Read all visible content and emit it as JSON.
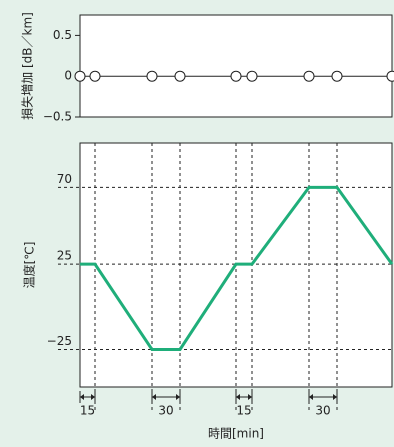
{
  "chart_data": [
    {
      "type": "line",
      "ylabel": "損失増加 [dB／km]",
      "x": [
        0,
        15,
        72,
        100,
        156,
        172,
        229,
        257,
        312
      ],
      "series": [
        {
          "color": "#222222",
          "values": [
            0,
            0,
            0,
            0,
            0,
            0,
            0,
            0,
            0
          ]
        }
      ],
      "markers": true,
      "xlim": [
        0,
        312
      ],
      "ylim": [
        -0.5,
        0.75
      ],
      "yticks": [
        0.5,
        0,
        {
          "value": -0.5,
          "label": "−0.5"
        }
      ]
    },
    {
      "type": "line",
      "ylabel": "温度[℃]",
      "xlabel": "時間[min]",
      "x": [
        0,
        15,
        72,
        100,
        156,
        172,
        229,
        257,
        312
      ],
      "series": [
        {
          "color": "#1fae7a",
          "values": [
            25,
            25,
            -25,
            -25,
            25,
            25,
            70,
            70,
            25
          ]
        }
      ],
      "xlim": [
        0,
        312
      ],
      "ylim": [
        -47,
        96
      ],
      "yticks": [
        70,
        25,
        {
          "value": -25,
          "label": "−25"
        }
      ],
      "grid": "dashed",
      "xgrid": [
        15,
        72,
        100,
        156,
        172,
        229,
        257
      ],
      "annotations": [
        {
          "label": "15",
          "x": [
            0,
            15
          ]
        },
        {
          "label": "30",
          "x": [
            72,
            100
          ]
        },
        {
          "label": "15",
          "x": [
            156,
            172
          ]
        },
        {
          "label": "30",
          "x": [
            229,
            257
          ]
        }
      ]
    }
  ]
}
